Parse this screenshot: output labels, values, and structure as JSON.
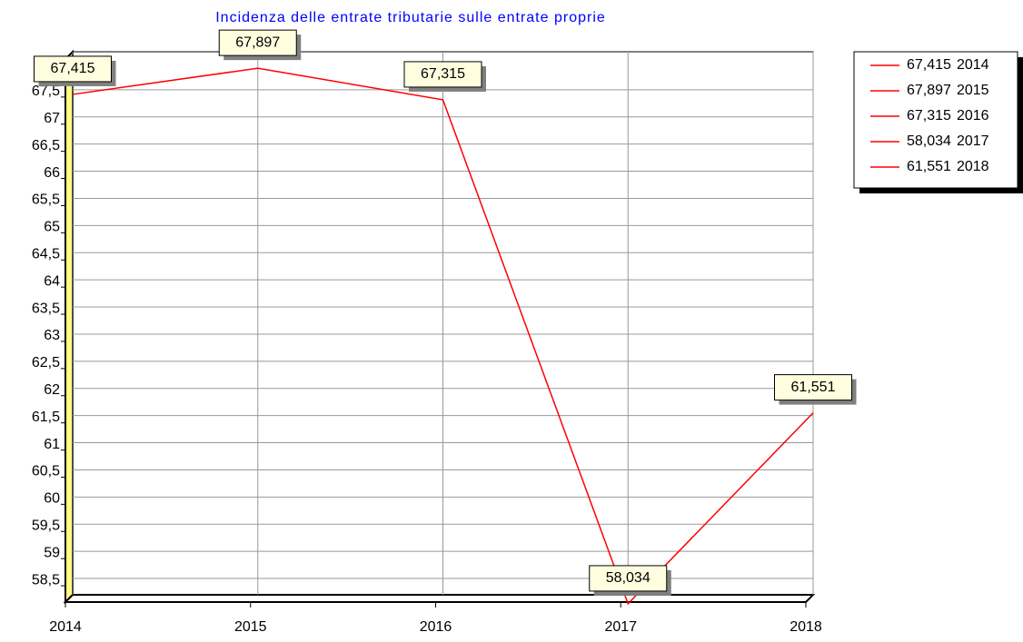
{
  "chart_data": {
    "type": "line",
    "title": "Incidenza delle entrate tributarie sulle entrate proprie",
    "categories": [
      "2014",
      "2015",
      "2016",
      "2017",
      "2018"
    ],
    "series": [
      {
        "name": "Incidenza",
        "color": "#ff0000",
        "values": [
          67.415,
          67.897,
          67.315,
          58.034,
          61.551
        ],
        "value_labels": [
          "67,415",
          "67,897",
          "67,315",
          "58,034",
          "61,551"
        ]
      }
    ],
    "ylim": [
      58.2,
      68.2
    ],
    "yticks": [
      {
        "value": 58.5,
        "label": "58,5"
      },
      59,
      {
        "value": 59.5,
        "label": "59,5"
      },
      60,
      {
        "value": 60.5,
        "label": "60,5"
      },
      61,
      {
        "value": 61.5,
        "label": "61,5"
      },
      62,
      {
        "value": 62.5,
        "label": "62,5"
      },
      63,
      {
        "value": 63.5,
        "label": "63,5"
      },
      64,
      {
        "value": 64.5,
        "label": "64,5"
      },
      65,
      {
        "value": 65.5,
        "label": "65,5"
      },
      66,
      {
        "value": 66.5,
        "label": "66,5"
      },
      67,
      {
        "value": 67.5,
        "label": "67,5"
      }
    ],
    "grid": true,
    "legend": "right"
  }
}
